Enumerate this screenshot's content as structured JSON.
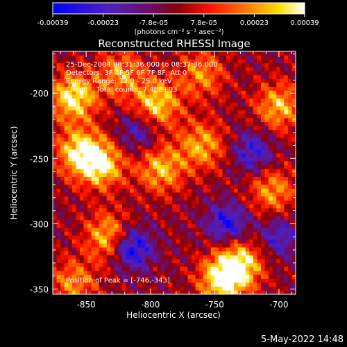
{
  "colorbar": {
    "tick_labels": [
      "-0.00039",
      "-0.00023",
      "-7.8e-05",
      "7.8e-05",
      "0.00023",
      "0.00039"
    ],
    "unit_label": "(photons cm⁻² s⁻¹ asec⁻²)",
    "range": [
      -0.00039,
      0.00039
    ],
    "colors": [
      "#0000ff",
      "#6a0dad",
      "#800000",
      "#ff0000",
      "#ff8c00",
      "#ffff00",
      "#ffffff"
    ]
  },
  "info": {
    "line1": "25-Dec-2004 08:31:36.000 to 08:37:36.000",
    "line2": "Detectors: 3F 4F 5F 6F 7F 8F, Att 0",
    "line3": "Energy Range: 12.0 - 25.0 keV",
    "line4": "Clean     Total counts: 7.48E+03",
    "peak": "Position of Peak = [-746,-343]"
  },
  "footer_date": "5-May-2022 14:48",
  "chart_data": {
    "type": "heatmap",
    "title": "Reconstructed RHESSI Image",
    "xlabel": "Heliocentric X (arcsec)",
    "ylabel": "Heliocentric Y (arcsec)",
    "xlim": [
      -876,
      -687
    ],
    "ylim": [
      -354,
      -168
    ],
    "xticks": [
      -850,
      -800,
      -750,
      -700
    ],
    "yticks": [
      -350,
      -300,
      -250,
      -200
    ],
    "xtick_labels": [
      "-850",
      "-800",
      "-750",
      "-700"
    ],
    "ytick_labels": [
      "-350",
      "-300",
      "-250",
      "-200"
    ],
    "peak_position": [
      -746,
      -343
    ],
    "grid": false,
    "bright_sources": [
      {
        "x": -860,
        "y": -203,
        "value": 0.00039
      },
      {
        "x": -855,
        "y": -245,
        "value": 0.00035
      },
      {
        "x": -838,
        "y": -255,
        "value": 0.00034
      },
      {
        "x": -832,
        "y": -310,
        "value": 0.00033
      },
      {
        "x": -795,
        "y": -208,
        "value": 0.00034
      },
      {
        "x": -792,
        "y": -258,
        "value": 0.0003
      },
      {
        "x": -823,
        "y": -185,
        "value": 0.00025
      },
      {
        "x": -760,
        "y": -240,
        "value": 0.00028
      },
      {
        "x": -744,
        "y": -343,
        "value": 0.00039
      },
      {
        "x": -730,
        "y": -330,
        "value": 0.00034
      },
      {
        "x": -700,
        "y": -210,
        "value": 0.0003
      },
      {
        "x": -705,
        "y": -275,
        "value": 0.00026
      },
      {
        "x": -760,
        "y": -185,
        "value": 0.00024
      },
      {
        "x": -860,
        "y": -345,
        "value": 0.00024
      }
    ],
    "dim_regions": [
      {
        "x": -815,
        "y": -318,
        "value": -0.00039
      },
      {
        "x": -740,
        "y": -300,
        "value": -0.0003
      },
      {
        "x": -720,
        "y": -245,
        "value": -0.00025
      },
      {
        "x": -810,
        "y": -230,
        "value": -0.0002
      },
      {
        "x": -700,
        "y": -310,
        "value": -0.00022
      }
    ]
  }
}
